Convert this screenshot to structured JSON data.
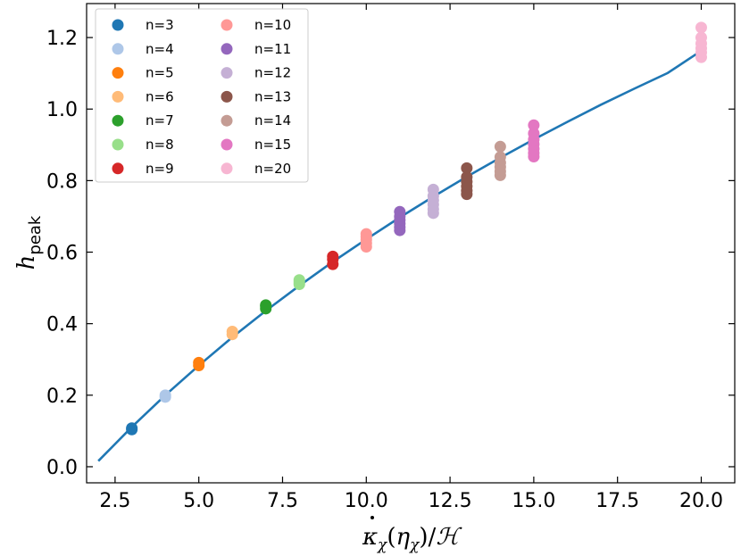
{
  "chart_data": {
    "type": "scatter",
    "title": "",
    "xlabel": "κ̇χ(ηχ)/ℋ",
    "ylabel": "h_peak",
    "ylabel_main": "h",
    "ylabel_sub": "peak",
    "xlabel_parts": {
      "kappa": "κ",
      "chi": "χ",
      "open": "(",
      "eta": "η",
      "close": ")/",
      "H": "ℋ"
    },
    "xlim": [
      1.65,
      21.0
    ],
    "ylim": [
      -0.045,
      1.295
    ],
    "xticks": [
      2.5,
      5.0,
      7.5,
      10.0,
      12.5,
      15.0,
      17.5,
      20.0
    ],
    "xtick_labels": [
      "2.5",
      "5.0",
      "7.5",
      "10.0",
      "12.5",
      "15.0",
      "17.5",
      "20.0"
    ],
    "yticks": [
      0.0,
      0.2,
      0.4,
      0.6,
      0.8,
      1.0,
      1.2
    ],
    "ytick_labels": [
      "0.0",
      "0.2",
      "0.4",
      "0.6",
      "0.8",
      "1.0",
      "1.2"
    ],
    "grid": false,
    "legend_position": "top-left",
    "series": [
      {
        "name": "n=3",
        "color": "#1f77b4",
        "x": 3,
        "y": [
          0.104,
          0.108
        ]
      },
      {
        "name": "n=4",
        "color": "#aec7e8",
        "x": 4,
        "y": [
          0.195,
          0.2
        ]
      },
      {
        "name": "n=5",
        "color": "#ff7f0e",
        "x": 5,
        "y": [
          0.283,
          0.291
        ]
      },
      {
        "name": "n=6",
        "color": "#ffbb78",
        "x": 6,
        "y": [
          0.37,
          0.378
        ]
      },
      {
        "name": "n=7",
        "color": "#2ca02c",
        "x": 7,
        "y": [
          0.442,
          0.449,
          0.452
        ]
      },
      {
        "name": "n=8",
        "color": "#98df8a",
        "x": 8,
        "y": [
          0.51,
          0.516,
          0.522
        ]
      },
      {
        "name": "n=9",
        "color": "#d62728",
        "x": 9,
        "y": [
          0.566,
          0.58,
          0.588
        ]
      },
      {
        "name": "n=10",
        "color": "#ff9896",
        "x": 10,
        "y": [
          0.615,
          0.625,
          0.635,
          0.643,
          0.651
        ]
      },
      {
        "name": "n=11",
        "color": "#9467bd",
        "x": 11,
        "y": [
          0.661,
          0.67,
          0.68,
          0.69,
          0.7,
          0.713
        ]
      },
      {
        "name": "n=12",
        "color": "#c5b0d5",
        "x": 12,
        "y": [
          0.709,
          0.72,
          0.733,
          0.745,
          0.757,
          0.775
        ]
      },
      {
        "name": "n=13",
        "color": "#8c564b",
        "x": 13,
        "y": [
          0.762,
          0.772,
          0.784,
          0.797,
          0.81,
          0.835
        ]
      },
      {
        "name": "n=14",
        "color": "#c49c94",
        "x": 14,
        "y": [
          0.815,
          0.826,
          0.838,
          0.85,
          0.866,
          0.895
        ]
      },
      {
        "name": "n=15",
        "color": "#e377c2",
        "x": 15,
        "y": [
          0.867,
          0.877,
          0.889,
          0.902,
          0.915,
          0.932,
          0.955
        ]
      },
      {
        "name": "n=20",
        "color": "#f7b6d2",
        "x": 20,
        "y": [
          1.145,
          1.158,
          1.17,
          1.183,
          1.2,
          1.228
        ]
      }
    ],
    "fit_line": {
      "color": "#1f77b4",
      "x": [
        2.0,
        3.0,
        4.0,
        5.0,
        6.0,
        7.0,
        8.0,
        9.0,
        10.0,
        11.0,
        12.0,
        13.0,
        14.0,
        15.0,
        16.0,
        17.0,
        18.0,
        19.0,
        20.0
      ],
      "y": [
        0.016,
        0.111,
        0.2,
        0.283,
        0.362,
        0.436,
        0.506,
        0.573,
        0.636,
        0.697,
        0.755,
        0.811,
        0.864,
        0.915,
        0.964,
        1.012,
        1.057,
        1.101,
        1.163
      ]
    }
  }
}
